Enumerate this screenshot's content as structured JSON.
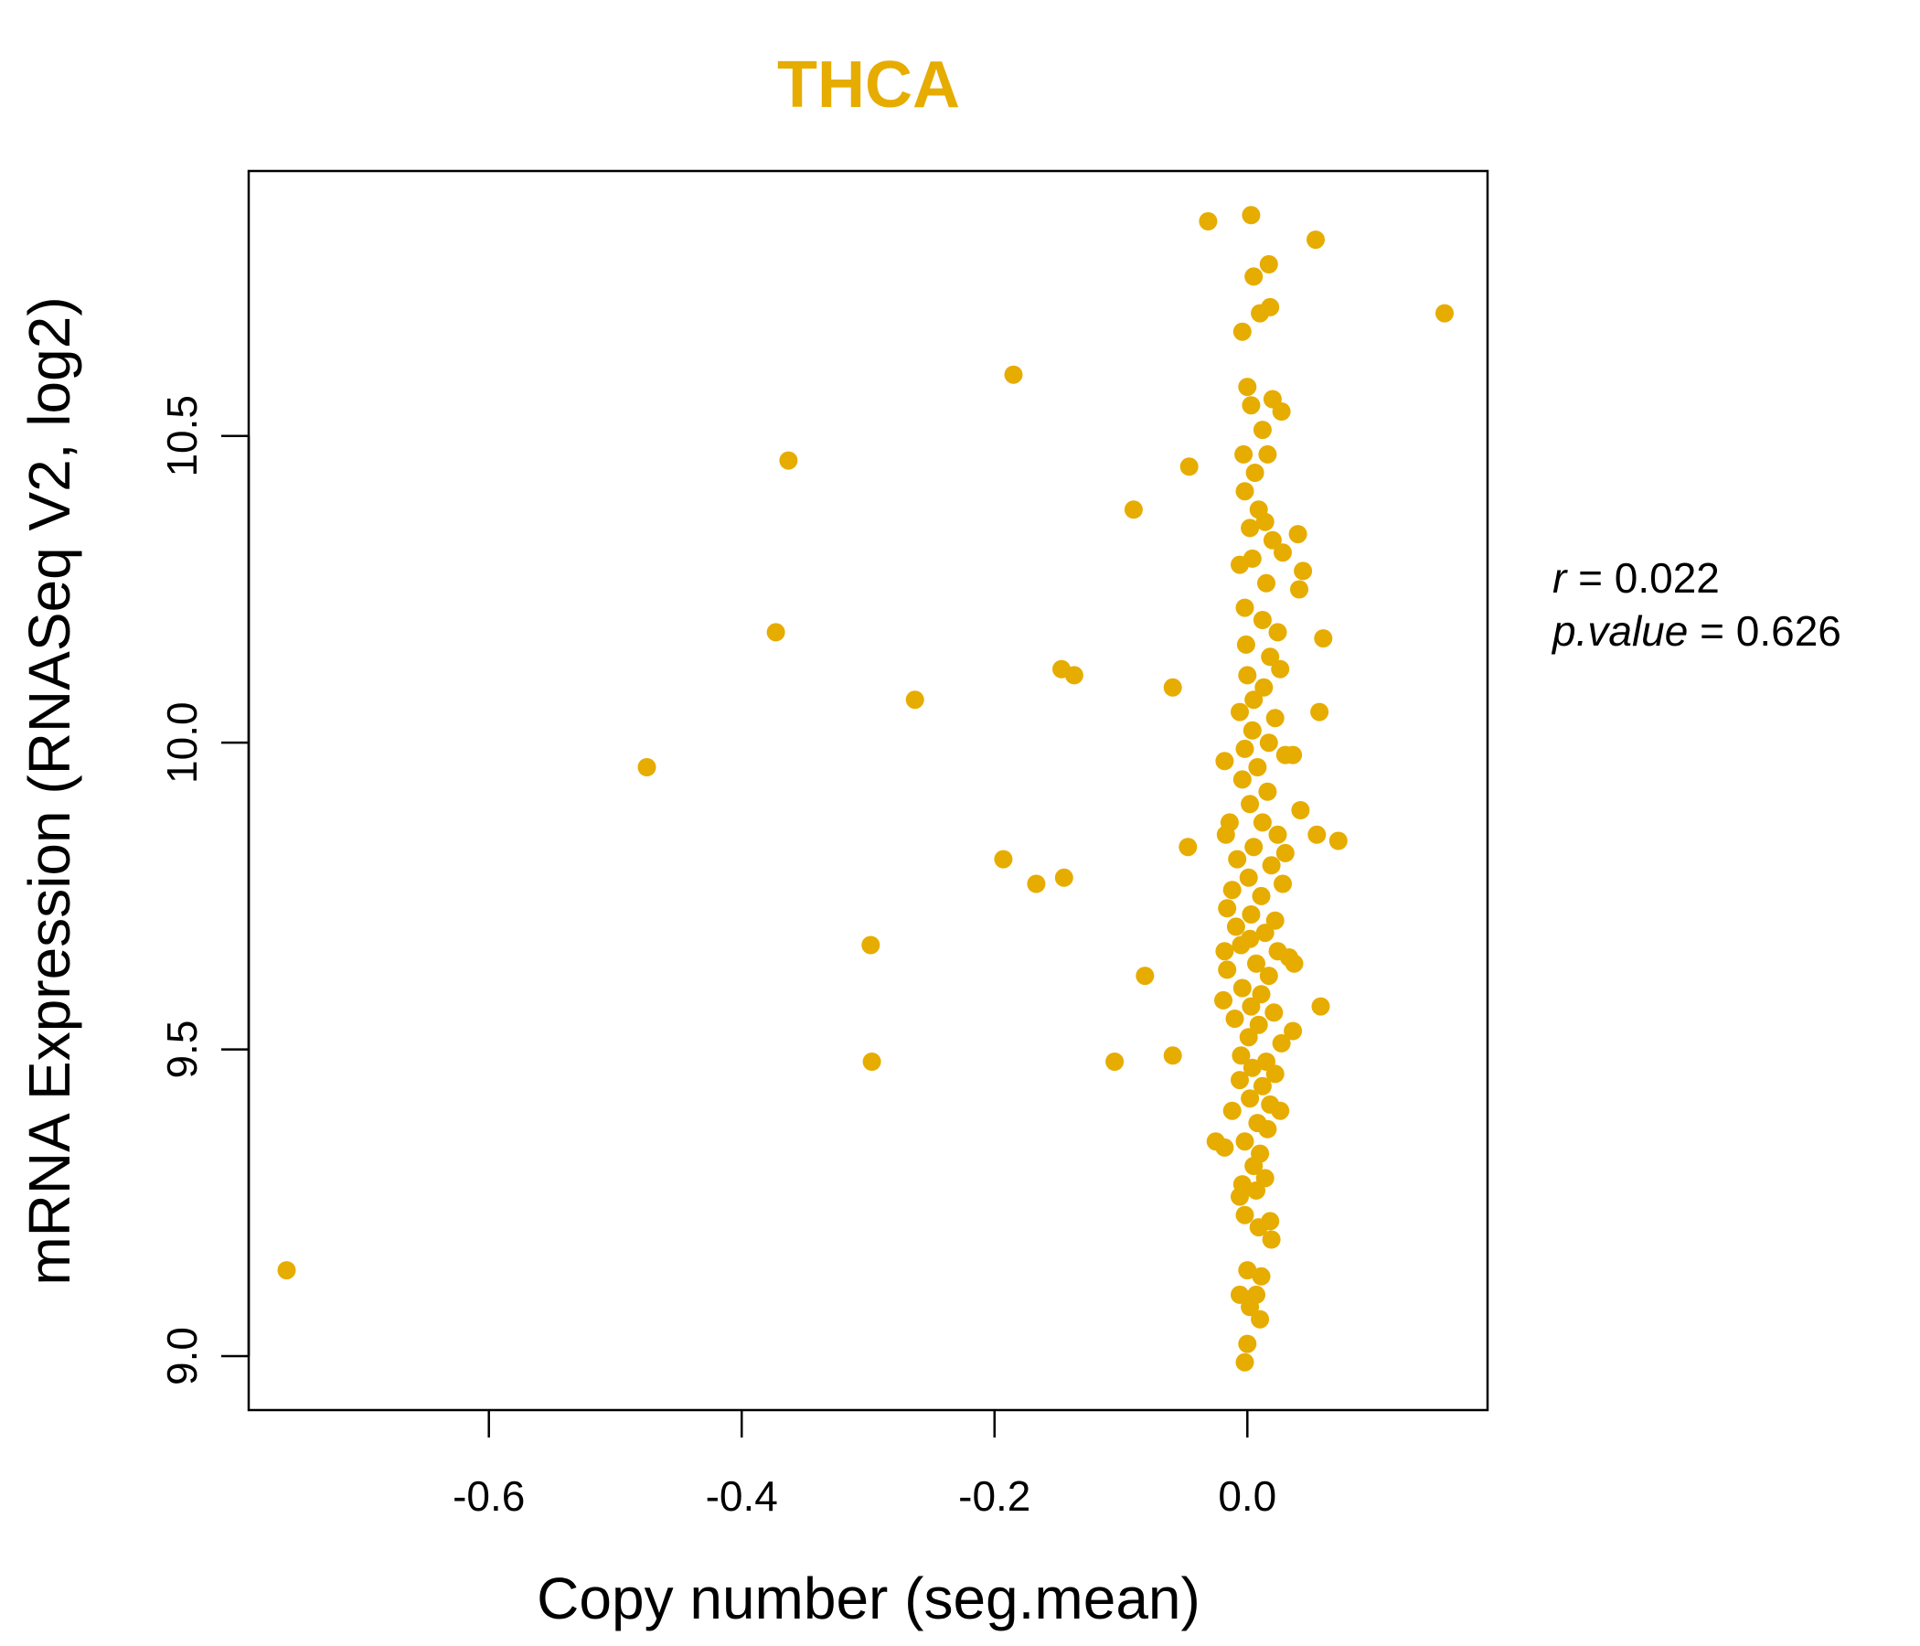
{
  "chart_data": {
    "type": "scatter",
    "title": "THCA",
    "xlabel": "Copy number (seg.mean)",
    "ylabel": "mRNA Expression (RNASeq V2, log2)",
    "xlim": [
      -0.79,
      0.19
    ],
    "ylim": [
      8.912,
      10.932
    ],
    "xticks": [
      -0.6,
      -0.4,
      -0.2,
      0.0
    ],
    "xtick_labels": [
      "-0.6",
      "-0.4",
      "-0.2",
      "0.0"
    ],
    "yticks": [
      9.0,
      9.5,
      10.0,
      10.5
    ],
    "ytick_labels": [
      "9.0",
      "9.5",
      "10.0",
      "10.5"
    ],
    "grid": false,
    "point_color": "#E6AC00",
    "stats": {
      "r_label": "r",
      "r_value": "0.022",
      "p_label": "p.value",
      "p_value": "0.626"
    },
    "series": [
      {
        "points": [
          [
            -0.76,
            9.14
          ],
          [
            -0.475,
            9.96
          ],
          [
            -0.373,
            10.18
          ],
          [
            -0.363,
            10.46
          ],
          [
            -0.298,
            9.67
          ],
          [
            -0.297,
            9.48
          ],
          [
            -0.263,
            10.07
          ],
          [
            -0.193,
            9.81
          ],
          [
            -0.185,
            10.6
          ],
          [
            -0.167,
            9.77
          ],
          [
            -0.147,
            10.12
          ],
          [
            -0.145,
            9.78
          ],
          [
            -0.137,
            10.11
          ],
          [
            -0.105,
            9.48
          ],
          [
            -0.09,
            10.38
          ],
          [
            -0.081,
            9.62
          ],
          [
            -0.059,
            10.09
          ],
          [
            -0.059,
            9.49
          ],
          [
            -0.047,
            9.83
          ],
          [
            -0.046,
            10.45
          ],
          [
            -0.031,
            10.85
          ],
          [
            -0.025,
            9.35
          ],
          [
            -0.018,
            9.97
          ],
          [
            0.003,
            10.86
          ],
          [
            0.054,
            10.82
          ],
          [
            0.156,
            10.7
          ],
          [
            0.005,
            10.76
          ],
          [
            0.017,
            10.78
          ],
          [
            0.01,
            10.7
          ],
          [
            0.018,
            10.71
          ],
          [
            -0.004,
            10.67
          ],
          [
            0.0,
            10.58
          ],
          [
            0.02,
            10.56
          ],
          [
            0.003,
            10.55
          ],
          [
            0.027,
            10.54
          ],
          [
            0.012,
            10.51
          ],
          [
            0.016,
            10.47
          ],
          [
            -0.003,
            10.47
          ],
          [
            0.006,
            10.44
          ],
          [
            -0.002,
            10.41
          ],
          [
            0.009,
            10.38
          ],
          [
            0.014,
            10.36
          ],
          [
            0.002,
            10.35
          ],
          [
            0.02,
            10.33
          ],
          [
            0.04,
            10.34
          ],
          [
            0.028,
            10.31
          ],
          [
            0.004,
            10.3
          ],
          [
            -0.006,
            10.29
          ],
          [
            0.044,
            10.28
          ],
          [
            0.015,
            10.26
          ],
          [
            0.041,
            10.25
          ],
          [
            -0.002,
            10.22
          ],
          [
            0.012,
            10.2
          ],
          [
            0.024,
            10.18
          ],
          [
            0.06,
            10.17
          ],
          [
            -0.001,
            10.16
          ],
          [
            0.018,
            10.14
          ],
          [
            0.026,
            10.12
          ],
          [
            0.0,
            10.11
          ],
          [
            0.013,
            10.09
          ],
          [
            0.005,
            10.07
          ],
          [
            -0.006,
            10.05
          ],
          [
            0.022,
            10.04
          ],
          [
            0.057,
            10.05
          ],
          [
            0.004,
            10.02
          ],
          [
            0.017,
            10.0
          ],
          [
            -0.002,
            9.99
          ],
          [
            0.03,
            9.98
          ],
          [
            0.036,
            9.98
          ],
          [
            0.008,
            9.96
          ],
          [
            -0.004,
            9.94
          ],
          [
            0.016,
            9.92
          ],
          [
            0.002,
            9.9
          ],
          [
            0.042,
            9.89
          ],
          [
            -0.014,
            9.87
          ],
          [
            0.012,
            9.87
          ],
          [
            0.024,
            9.85
          ],
          [
            0.055,
            9.85
          ],
          [
            0.072,
            9.84
          ],
          [
            -0.017,
            9.85
          ],
          [
            0.005,
            9.83
          ],
          [
            0.03,
            9.82
          ],
          [
            -0.008,
            9.81
          ],
          [
            0.019,
            9.8
          ],
          [
            0.001,
            9.78
          ],
          [
            0.028,
            9.77
          ],
          [
            -0.012,
            9.76
          ],
          [
            0.011,
            9.75
          ],
          [
            -0.016,
            9.73
          ],
          [
            0.003,
            9.72
          ],
          [
            0.022,
            9.71
          ],
          [
            -0.009,
            9.7
          ],
          [
            0.014,
            9.69
          ],
          [
            0.002,
            9.68
          ],
          [
            -0.005,
            9.67
          ],
          [
            0.024,
            9.66
          ],
          [
            -0.018,
            9.66
          ],
          [
            0.033,
            9.65
          ],
          [
            0.037,
            9.64
          ],
          [
            0.007,
            9.64
          ],
          [
            -0.016,
            9.63
          ],
          [
            0.017,
            9.62
          ],
          [
            -0.004,
            9.6
          ],
          [
            0.011,
            9.59
          ],
          [
            -0.019,
            9.58
          ],
          [
            0.003,
            9.57
          ],
          [
            0.058,
            9.57
          ],
          [
            0.021,
            9.56
          ],
          [
            -0.01,
            9.55
          ],
          [
            0.009,
            9.54
          ],
          [
            0.036,
            9.53
          ],
          [
            0.001,
            9.52
          ],
          [
            0.027,
            9.51
          ],
          [
            -0.005,
            9.49
          ],
          [
            0.015,
            9.48
          ],
          [
            0.004,
            9.47
          ],
          [
            0.022,
            9.46
          ],
          [
            -0.006,
            9.45
          ],
          [
            0.012,
            9.44
          ],
          [
            0.002,
            9.42
          ],
          [
            0.018,
            9.41
          ],
          [
            -0.012,
            9.4
          ],
          [
            0.026,
            9.4
          ],
          [
            0.008,
            9.38
          ],
          [
            0.016,
            9.37
          ],
          [
            -0.002,
            9.35
          ],
          [
            -0.018,
            9.34
          ],
          [
            0.01,
            9.33
          ],
          [
            0.005,
            9.31
          ],
          [
            0.014,
            9.29
          ],
          [
            -0.004,
            9.28
          ],
          [
            0.007,
            9.27
          ],
          [
            -0.006,
            9.26
          ],
          [
            0.018,
            9.22
          ],
          [
            -0.002,
            9.23
          ],
          [
            0.009,
            9.21
          ],
          [
            0.019,
            9.19
          ],
          [
            0.0,
            9.14
          ],
          [
            0.011,
            9.13
          ],
          [
            0.007,
            9.1
          ],
          [
            -0.006,
            9.1
          ],
          [
            0.002,
            9.08
          ],
          [
            0.01,
            9.06
          ],
          [
            0.0,
            9.02
          ],
          [
            -0.002,
            8.99
          ]
        ]
      }
    ]
  }
}
